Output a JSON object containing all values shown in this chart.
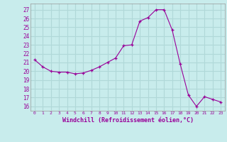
{
  "x": [
    0,
    1,
    2,
    3,
    4,
    5,
    6,
    7,
    8,
    9,
    10,
    11,
    12,
    13,
    14,
    15,
    16,
    17,
    18,
    19,
    20,
    21,
    22,
    23
  ],
  "y": [
    21.3,
    20.5,
    20.0,
    19.9,
    19.9,
    19.7,
    19.8,
    20.1,
    20.5,
    21.0,
    21.5,
    22.9,
    23.0,
    25.7,
    26.1,
    27.0,
    27.0,
    24.7,
    20.8,
    17.3,
    16.0,
    17.1,
    16.8,
    16.5
  ],
  "line_color": "#990099",
  "marker": "+",
  "bg_color": "#c8ecec",
  "grid_color": "#b0d8d8",
  "xlabel": "Windchill (Refroidissement éolien,°C)",
  "ylabel_ticks": [
    16,
    17,
    18,
    19,
    20,
    21,
    22,
    23,
    24,
    25,
    26,
    27
  ],
  "ylim": [
    15.5,
    27.7
  ],
  "xlim": [
    -0.5,
    23.5
  ],
  "xtick_labels": [
    "0",
    "1",
    "2",
    "3",
    "4",
    "5",
    "6",
    "7",
    "8",
    "9",
    "10",
    "11",
    "12",
    "13",
    "14",
    "15",
    "16",
    "17",
    "18",
    "19",
    "20",
    "21",
    "22",
    "23"
  ],
  "tick_color": "#990099",
  "axis_label_color": "#990099",
  "spine_color": "#999999"
}
